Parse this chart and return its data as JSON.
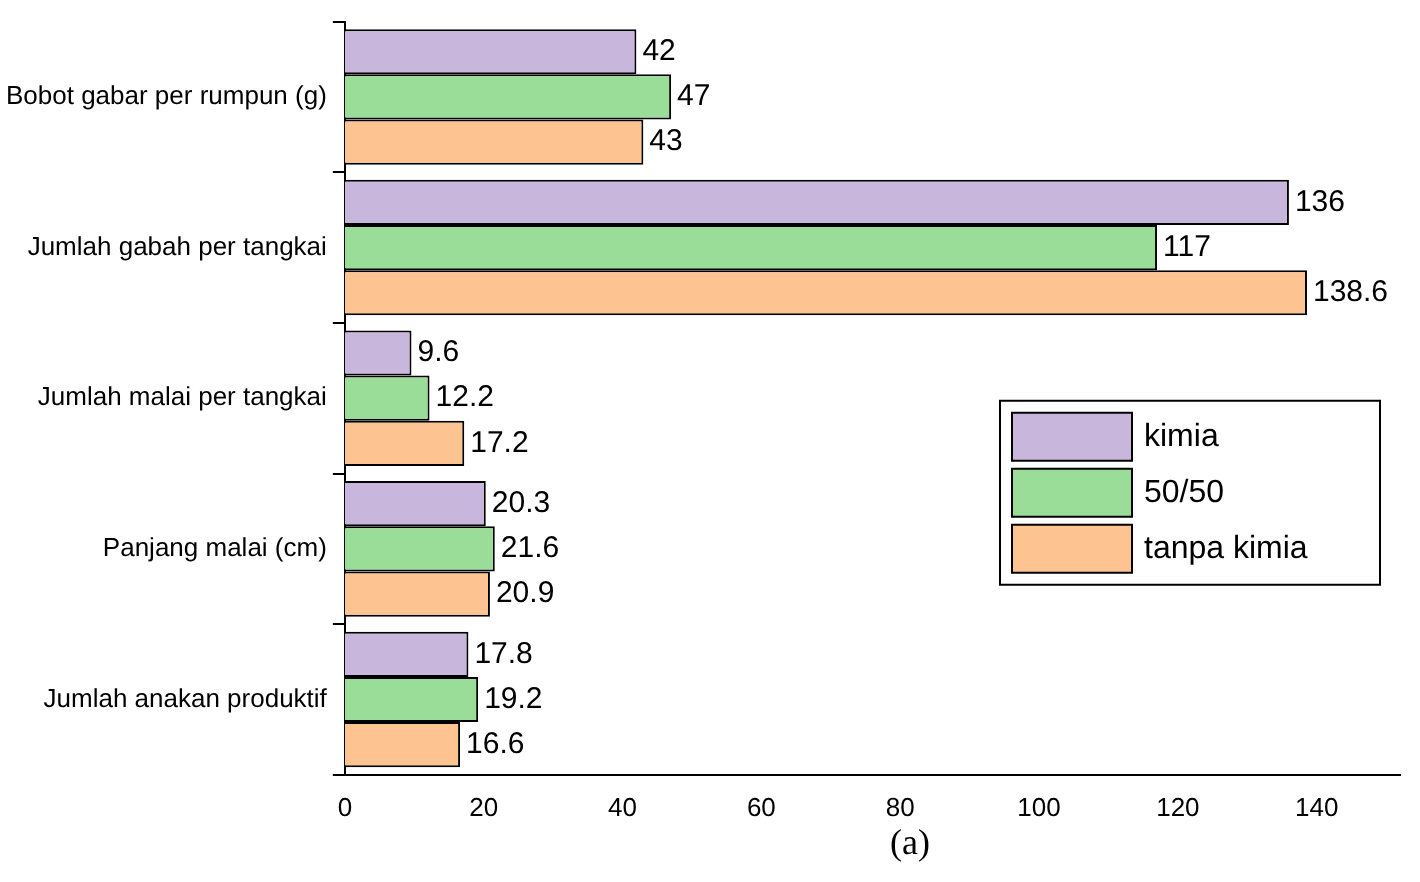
{
  "chart_data": {
    "type": "bar",
    "orientation": "horizontal",
    "categories": [
      "Bobot gabar per rumpun (g)",
      "Jumlah gabah per tangkai",
      "Jumlah malai per tangkai",
      "Panjang malai (cm)",
      "Jumlah anakan produktif"
    ],
    "series": [
      {
        "name": "kimia",
        "color": "#c8b6dd",
        "values": [
          42,
          136,
          9.6,
          20.3,
          17.8
        ]
      },
      {
        "name": "50/50",
        "color": "#99dd99",
        "values": [
          47,
          117,
          12.2,
          21.6,
          19.2
        ]
      },
      {
        "name": "tanpa kimia",
        "color": "#fdc491",
        "values": [
          43,
          138.6,
          17.2,
          20.9,
          16.6
        ]
      }
    ],
    "xlim": [
      0,
      152
    ],
    "xticks": [
      0,
      20,
      40,
      60,
      80,
      100,
      120,
      140
    ],
    "grid": false,
    "legend": "bottom right",
    "data_labels": true,
    "annotations": [
      "(a)"
    ]
  }
}
